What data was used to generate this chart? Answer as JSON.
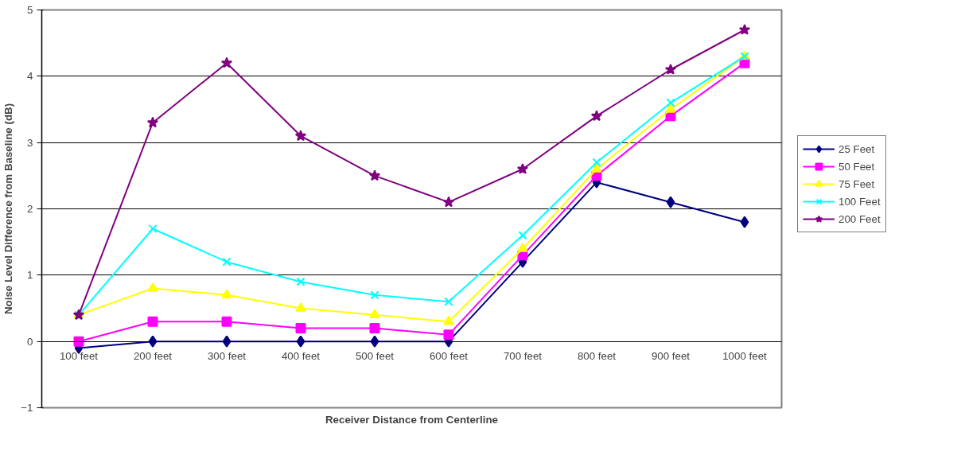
{
  "chart_data": {
    "type": "line",
    "xlabel": "Receiver Distance from Centerline",
    "ylabel": "Noise Level Difference from Baseline (dB)",
    "categories": [
      "100 feet",
      "200 feet",
      "300 feet",
      "400 feet",
      "500 feet",
      "600 feet",
      "700 feet",
      "800 feet",
      "900 feet",
      "1000 feet"
    ],
    "ylim": [
      -1,
      5
    ],
    "yticks": [
      -1,
      0,
      1,
      2,
      3,
      4,
      5
    ],
    "grid": "y",
    "legend": "right",
    "series": [
      {
        "name": "25 Feet",
        "color": "#000080",
        "marker": "diamond",
        "values": [
          -0.1,
          0,
          0,
          0,
          0,
          0,
          1.2,
          2.4,
          2.1,
          1.8
        ]
      },
      {
        "name": "50 Feet",
        "color": "#ff00ff",
        "marker": "square",
        "values": [
          0,
          0.3,
          0.3,
          0.2,
          0.2,
          0.1,
          1.3,
          2.5,
          3.4,
          4.2
        ]
      },
      {
        "name": "75 Feet",
        "color": "#ffff00",
        "marker": "triangle",
        "values": [
          0.4,
          0.8,
          0.7,
          0.5,
          0.4,
          0.3,
          1.4,
          2.6,
          3.5,
          4.3
        ]
      },
      {
        "name": "100 Feet",
        "color": "#00ffff",
        "marker": "cross",
        "values": [
          0.4,
          1.7,
          1.2,
          0.9,
          0.7,
          0.6,
          1.6,
          2.7,
          3.6,
          4.3
        ]
      },
      {
        "name": "200 Feet",
        "color": "#800080",
        "marker": "star",
        "values": [
          0.4,
          3.3,
          4.2,
          3.1,
          2.5,
          2.1,
          2.6,
          3.4,
          4.1,
          4.7
        ]
      }
    ]
  }
}
